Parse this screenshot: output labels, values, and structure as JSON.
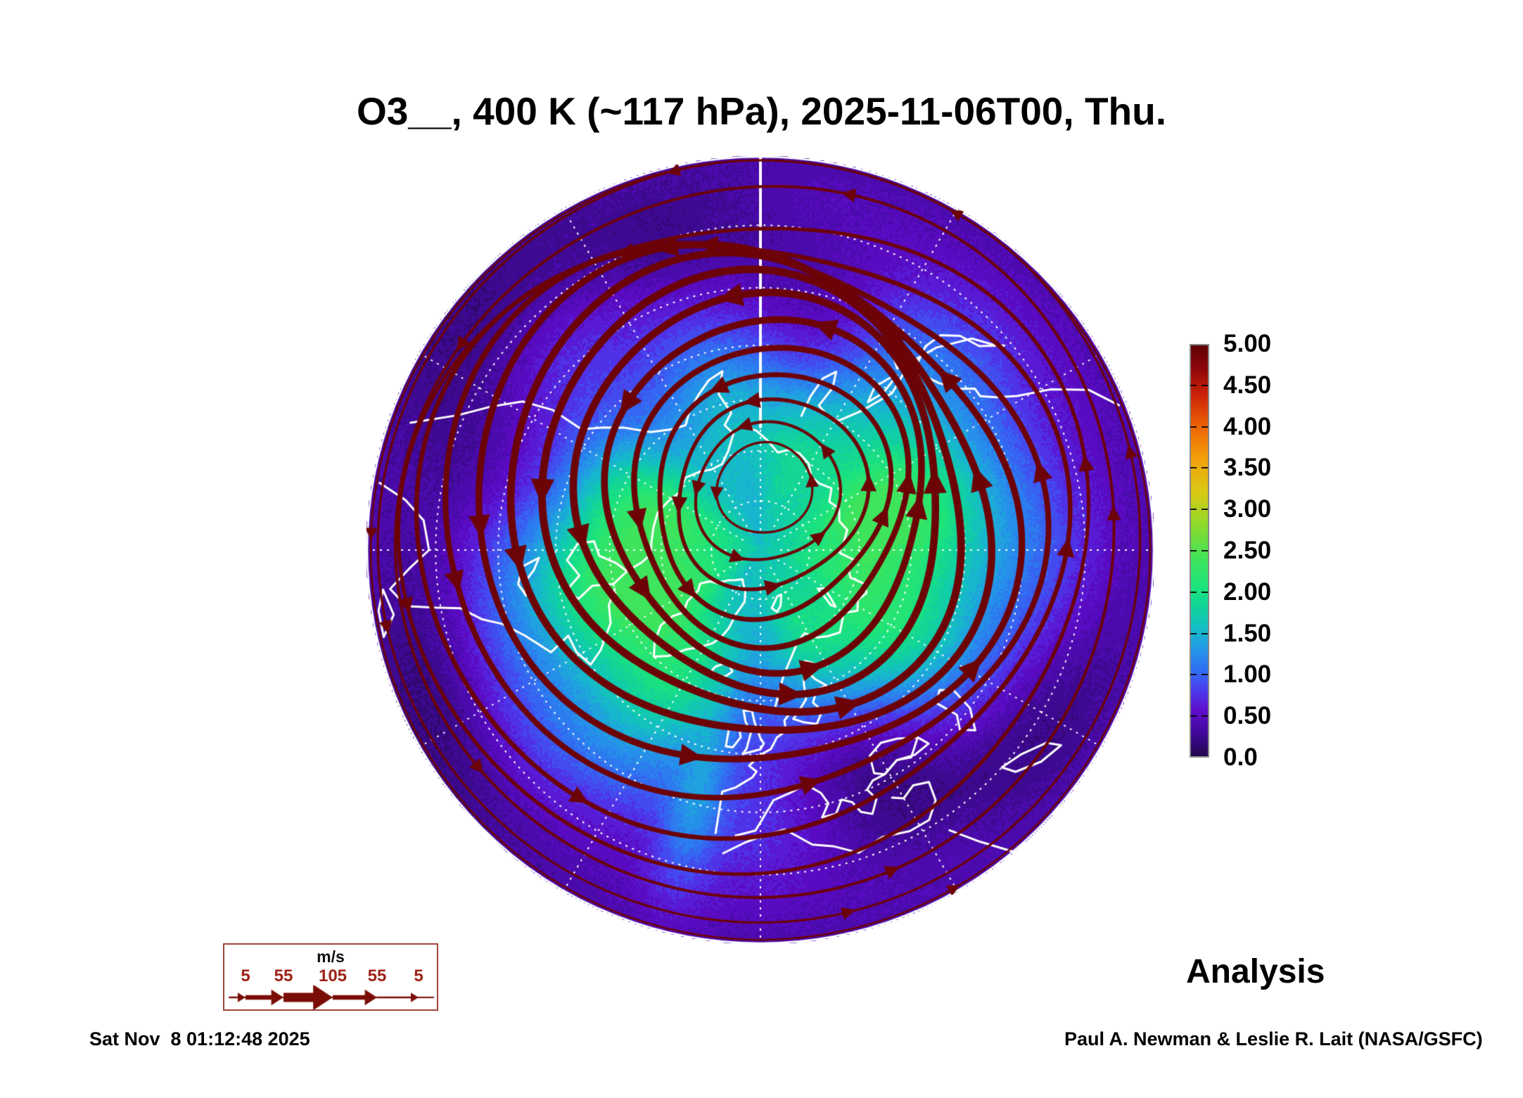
{
  "title": {
    "text": "O3__, 400 K (~117 hPa), 2025-11-06T00, Thu."
  },
  "analysis_label": "Analysis",
  "footer": {
    "timestamp": "Sat Nov  8 01:12:48 2025",
    "credit": "Paul A. Newman & Leslie R. Lait (NASA/GSFC)"
  },
  "colorbar": {
    "tick_labels": [
      "5.00",
      "4.50",
      "4.00",
      "3.50",
      "3.00",
      "2.50",
      "2.00",
      "1.50",
      "1.00",
      "0.50",
      "0.0"
    ],
    "min": 0.0,
    "max": 5.0,
    "border_color": "#888888",
    "gradient_stops": [
      {
        "value": 0.0,
        "color": "#23084d"
      },
      {
        "value": 0.3,
        "color": "#43099f"
      },
      {
        "value": 0.55,
        "color": "#5e0cc9"
      },
      {
        "value": 0.8,
        "color": "#4b3bee"
      },
      {
        "value": 1.05,
        "color": "#2f6ff2"
      },
      {
        "value": 1.3,
        "color": "#2497e8"
      },
      {
        "value": 1.55,
        "color": "#14bcc8"
      },
      {
        "value": 1.8,
        "color": "#0fd29c"
      },
      {
        "value": 2.05,
        "color": "#1ce47c"
      },
      {
        "value": 2.4,
        "color": "#3fe45a"
      },
      {
        "value": 2.8,
        "color": "#8ada2c"
      },
      {
        "value": 3.2,
        "color": "#d8ca14"
      },
      {
        "value": 3.6,
        "color": "#f2a20c"
      },
      {
        "value": 4.0,
        "color": "#ee6606"
      },
      {
        "value": 4.4,
        "color": "#cc2208"
      },
      {
        "value": 4.7,
        "color": "#91070a"
      },
      {
        "value": 5.0,
        "color": "#5e0005"
      }
    ]
  },
  "wind_legend": {
    "units_label": "m/s",
    "speeds": [
      "5",
      "55",
      "105",
      "55",
      "5"
    ],
    "number_color": "#9c2317",
    "border_color": "#a0453c",
    "arrow_color": "#7a0c06"
  },
  "map": {
    "coastline_color": "#ffffff",
    "graticule_color": "#ffffff",
    "streamline_color": "#6c0307",
    "rim_color": "#ffffff"
  },
  "chart_data": {
    "type": "heatmap",
    "subtype": "north-polar-stereographic-map",
    "title": "O3__, 400 K (~117 hPa), 2025-11-06T00, Thu.",
    "variable": "O3 (ozone)",
    "vertical_level": "400 K potential temperature surface (~117 hPa)",
    "valid_time": "2025-11-06T00",
    "weekday": "Thu.",
    "product_type": "Analysis",
    "projection": "Northern Hemisphere polar stereographic, North Pole at center, edge near 20N; 0E meridian toward bottom (Europe), 90E right, 180E at top marked by solid white meridian, 90W left",
    "colorbar": {
      "orientation": "vertical, right side",
      "range": [
        0.0,
        5.0
      ],
      "tick_step": 0.5,
      "tick_labels": [
        "5.00",
        "4.50",
        "4.00",
        "3.50",
        "3.00",
        "2.50",
        "2.00",
        "1.50",
        "1.00",
        "0.50",
        "0.0"
      ]
    },
    "field_radial_profile_estimate": {
      "latitudes_N": [
        90,
        80,
        70,
        60,
        50,
        40,
        30,
        20
      ],
      "ozone_values": [
        1.6,
        1.9,
        1.8,
        1.2,
        0.8,
        0.55,
        0.45,
        0.4
      ]
    },
    "field_features": [
      "green maxima (~1.9-2.2) in broken ring over Canadian Arctic and eastern Siberia near 70-80N",
      "teal/cyan (~1.4-1.8) over central Arctic near pole",
      "blue band (~0.8-1.3) through midlatitudes",
      "violet/purple low values (~0.3-0.7) around outer edge toward 20-35N",
      "narrow lighter streak extending south over the UK/eastern Atlantic"
    ],
    "wind_overlay": {
      "legend_speeds_ms": [
        5,
        55,
        105,
        55,
        5
      ],
      "pattern": "closed counterclockwise (westerly) streamlines circling the polar vortex; line thickness proportional to wind speed, arrowheads show flow direction",
      "streamline_color": "dark red"
    },
    "overlays": [
      "white coastlines",
      "white dashed graticule, 10 deg latitude circles and 30 deg meridians",
      "solid white 180E meridian from rim toward pole",
      "dark red wind streamlines with arrowheads"
    ]
  }
}
